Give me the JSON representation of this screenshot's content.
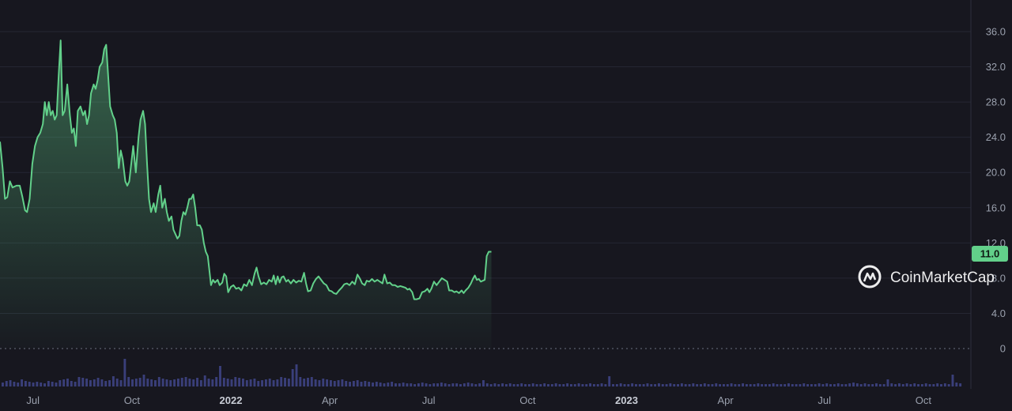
{
  "watermark": "CoinMarketCap",
  "colors": {
    "background": "#17171f",
    "line": "#62d08a",
    "grid": "#252733",
    "volume": "#3a3f7a",
    "label_bg": "#62d08a",
    "text": "#9aa0ad"
  },
  "chart_data": {
    "type": "area",
    "y_ticks": [
      "36.0",
      "32.0",
      "28.0",
      "24.0",
      "20.0",
      "16.0",
      "12.0",
      "8.0",
      "4.0",
      "0"
    ],
    "y_tick_values": [
      36,
      32,
      28,
      24,
      20,
      16,
      12,
      8,
      4,
      0
    ],
    "ylim": [
      0,
      37.5
    ],
    "x_ticks": [
      {
        "label": "Jul",
        "t": 5.5,
        "year": false
      },
      {
        "label": "Oct",
        "t": 8.5,
        "year": false
      },
      {
        "label": "2022",
        "t": 11.5,
        "year": true
      },
      {
        "label": "Apr",
        "t": 14.5,
        "year": false
      },
      {
        "label": "Jul",
        "t": 17.5,
        "year": false
      },
      {
        "label": "Oct",
        "t": 20.5,
        "year": false
      },
      {
        "label": "2023",
        "t": 23.5,
        "year": true
      },
      {
        "label": "Apr",
        "t": 26.5,
        "year": false
      },
      {
        "label": "Jul",
        "t": 29.5,
        "year": false
      },
      {
        "label": "Oct",
        "t": 32.5,
        "year": false
      }
    ],
    "xlim": [
      4.5,
      33.75
    ],
    "last_value_label": "11.0",
    "series": [
      {
        "values": [
          [
            4.5,
            23.5
          ],
          [
            4.58,
            20.5
          ],
          [
            4.65,
            17.0
          ],
          [
            4.72,
            17.2
          ],
          [
            4.8,
            19.0
          ],
          [
            4.88,
            18.3
          ],
          [
            5.0,
            18.5
          ],
          [
            5.1,
            18.5
          ],
          [
            5.18,
            17.2
          ],
          [
            5.26,
            15.7
          ],
          [
            5.32,
            15.5
          ],
          [
            5.4,
            17.0
          ],
          [
            5.48,
            21.0
          ],
          [
            5.56,
            23.0
          ],
          [
            5.64,
            24.0
          ],
          [
            5.72,
            24.5
          ],
          [
            5.8,
            25.5
          ],
          [
            5.86,
            28.0
          ],
          [
            5.92,
            26.5
          ],
          [
            5.98,
            28.0
          ],
          [
            6.04,
            26.5
          ],
          [
            6.1,
            27.0
          ],
          [
            6.16,
            26.0
          ],
          [
            6.22,
            26.5
          ],
          [
            6.28,
            31.0
          ],
          [
            6.34,
            35.0
          ],
          [
            6.4,
            26.5
          ],
          [
            6.46,
            27.0
          ],
          [
            6.54,
            30.0
          ],
          [
            6.62,
            26.5
          ],
          [
            6.68,
            24.5
          ],
          [
            6.74,
            25.0
          ],
          [
            6.8,
            23.0
          ],
          [
            6.86,
            27.0
          ],
          [
            6.94,
            27.5
          ],
          [
            7.02,
            26.5
          ],
          [
            7.08,
            27.0
          ],
          [
            7.14,
            25.5
          ],
          [
            7.2,
            26.5
          ],
          [
            7.26,
            29.0
          ],
          [
            7.34,
            30.0
          ],
          [
            7.4,
            29.5
          ],
          [
            7.46,
            30.5
          ],
          [
            7.52,
            32.0
          ],
          [
            7.6,
            32.5
          ],
          [
            7.66,
            34.0
          ],
          [
            7.72,
            34.5
          ],
          [
            7.78,
            31.0
          ],
          [
            7.84,
            27.5
          ],
          [
            7.92,
            26.5
          ],
          [
            7.98,
            26.0
          ],
          [
            8.04,
            24.5
          ],
          [
            8.1,
            20.5
          ],
          [
            8.16,
            22.5
          ],
          [
            8.22,
            21.5
          ],
          [
            8.3,
            19.0
          ],
          [
            8.36,
            18.5
          ],
          [
            8.42,
            19.0
          ],
          [
            8.48,
            21.0
          ],
          [
            8.54,
            23.0
          ],
          [
            8.62,
            20.0
          ],
          [
            8.7,
            24.0
          ],
          [
            8.76,
            26.0
          ],
          [
            8.84,
            27.0
          ],
          [
            8.9,
            25.5
          ],
          [
            8.96,
            21.0
          ],
          [
            9.02,
            17.0
          ],
          [
            9.08,
            15.5
          ],
          [
            9.16,
            16.5
          ],
          [
            9.22,
            15.5
          ],
          [
            9.3,
            17.5
          ],
          [
            9.36,
            18.5
          ],
          [
            9.42,
            16.0
          ],
          [
            9.5,
            17.0
          ],
          [
            9.56,
            15.5
          ],
          [
            9.62,
            14.5
          ],
          [
            9.7,
            15.0
          ],
          [
            9.76,
            13.5
          ],
          [
            9.82,
            13.0
          ],
          [
            9.88,
            12.5
          ],
          [
            9.94,
            12.8
          ],
          [
            10.0,
            14.5
          ],
          [
            10.06,
            15.5
          ],
          [
            10.12,
            15.2
          ],
          [
            10.18,
            16.0
          ],
          [
            10.24,
            17.0
          ],
          [
            10.3,
            17.0
          ],
          [
            10.36,
            17.5
          ],
          [
            10.42,
            16.0
          ],
          [
            10.48,
            14.0
          ],
          [
            10.56,
            14.0
          ],
          [
            10.62,
            13.5
          ],
          [
            10.68,
            12.0
          ],
          [
            10.74,
            11.0
          ],
          [
            10.8,
            10.5
          ],
          [
            10.86,
            8.5
          ],
          [
            10.9,
            7.2
          ],
          [
            10.96,
            7.8
          ],
          [
            11.02,
            7.5
          ],
          [
            11.1,
            7.8
          ],
          [
            11.16,
            7.2
          ],
          [
            11.24,
            7.5
          ],
          [
            11.3,
            8.5
          ],
          [
            11.36,
            8.2
          ],
          [
            11.42,
            6.4
          ],
          [
            11.5,
            7.0
          ],
          [
            11.58,
            7.2
          ],
          [
            11.66,
            6.8
          ],
          [
            11.74,
            6.9
          ],
          [
            11.82,
            6.6
          ],
          [
            11.9,
            7.3
          ],
          [
            11.98,
            7.1
          ],
          [
            12.06,
            7.8
          ],
          [
            12.14,
            7.2
          ],
          [
            12.22,
            8.5
          ],
          [
            12.28,
            9.2
          ],
          [
            12.34,
            8.2
          ],
          [
            12.42,
            7.3
          ],
          [
            12.5,
            7.5
          ],
          [
            12.58,
            7.3
          ],
          [
            12.66,
            7.8
          ],
          [
            12.74,
            7.6
          ],
          [
            12.8,
            8.3
          ],
          [
            12.86,
            7.3
          ],
          [
            12.92,
            8.2
          ],
          [
            12.98,
            7.5
          ],
          [
            13.04,
            8.1
          ],
          [
            13.1,
            8.2
          ],
          [
            13.18,
            7.6
          ],
          [
            13.24,
            7.8
          ],
          [
            13.32,
            7.4
          ],
          [
            13.4,
            7.8
          ],
          [
            13.48,
            7.5
          ],
          [
            13.56,
            7.7
          ],
          [
            13.64,
            7.6
          ],
          [
            13.72,
            8.6
          ],
          [
            13.78,
            7.4
          ],
          [
            13.84,
            6.5
          ],
          [
            13.92,
            6.6
          ],
          [
            14.0,
            7.4
          ],
          [
            14.08,
            7.9
          ],
          [
            14.16,
            8.2
          ],
          [
            14.24,
            7.8
          ],
          [
            14.32,
            7.4
          ],
          [
            14.4,
            7.2
          ],
          [
            14.48,
            6.6
          ],
          [
            14.56,
            6.5
          ],
          [
            14.62,
            6.3
          ],
          [
            14.7,
            6.2
          ],
          [
            14.78,
            6.6
          ],
          [
            14.86,
            6.9
          ],
          [
            14.94,
            7.3
          ],
          [
            15.02,
            7.4
          ],
          [
            15.1,
            7.2
          ],
          [
            15.18,
            7.6
          ],
          [
            15.26,
            7.3
          ],
          [
            15.34,
            8.4
          ],
          [
            15.42,
            7.9
          ],
          [
            15.48,
            7.4
          ],
          [
            15.56,
            7.2
          ],
          [
            15.62,
            7.7
          ],
          [
            15.7,
            7.6
          ],
          [
            15.78,
            7.9
          ],
          [
            15.86,
            7.6
          ],
          [
            15.94,
            7.8
          ],
          [
            16.02,
            7.6
          ],
          [
            16.1,
            7.4
          ],
          [
            16.16,
            8.4
          ],
          [
            16.24,
            7.4
          ],
          [
            16.32,
            7.5
          ],
          [
            16.4,
            7.2
          ],
          [
            16.48,
            7.2
          ],
          [
            16.56,
            7.0
          ],
          [
            16.64,
            7.1
          ],
          [
            16.72,
            7.0
          ],
          [
            16.8,
            6.9
          ],
          [
            16.86,
            6.7
          ],
          [
            16.92,
            6.8
          ],
          [
            17.0,
            6.4
          ],
          [
            17.06,
            5.6
          ],
          [
            17.14,
            5.6
          ],
          [
            17.22,
            5.7
          ],
          [
            17.3,
            6.4
          ],
          [
            17.38,
            6.5
          ],
          [
            17.46,
            6.8
          ],
          [
            17.52,
            6.4
          ],
          [
            17.58,
            6.8
          ],
          [
            17.66,
            7.6
          ],
          [
            17.74,
            7.2
          ],
          [
            17.82,
            7.6
          ],
          [
            17.9,
            8.0
          ],
          [
            17.98,
            7.8
          ],
          [
            18.06,
            7.6
          ],
          [
            18.12,
            6.6
          ],
          [
            18.2,
            6.6
          ],
          [
            18.28,
            6.4
          ],
          [
            18.34,
            6.5
          ],
          [
            18.42,
            6.3
          ],
          [
            18.5,
            6.6
          ],
          [
            18.56,
            6.3
          ],
          [
            18.62,
            6.6
          ],
          [
            18.7,
            6.9
          ],
          [
            18.78,
            7.4
          ],
          [
            18.84,
            7.9
          ],
          [
            18.9,
            8.3
          ],
          [
            18.96,
            7.8
          ],
          [
            19.02,
            7.9
          ],
          [
            19.08,
            7.6
          ],
          [
            19.14,
            7.7
          ],
          [
            19.2,
            7.8
          ],
          [
            19.26,
            10.5
          ],
          [
            19.32,
            11.0
          ],
          [
            19.4,
            11.0
          ]
        ]
      }
    ]
  },
  "volume_data": {
    "values": [
      0.05,
      0.07,
      0.08,
      0.06,
      0.05,
      0.09,
      0.07,
      0.06,
      0.05,
      0.06,
      0.05,
      0.04,
      0.07,
      0.06,
      0.05,
      0.08,
      0.09,
      0.1,
      0.07,
      0.06,
      0.12,
      0.11,
      0.1,
      0.08,
      0.09,
      0.11,
      0.09,
      0.07,
      0.08,
      0.13,
      0.1,
      0.08,
      0.35,
      0.12,
      0.09,
      0.1,
      0.11,
      0.15,
      0.1,
      0.09,
      0.08,
      0.12,
      0.1,
      0.09,
      0.08,
      0.09,
      0.1,
      0.11,
      0.12,
      0.1,
      0.09,
      0.11,
      0.08,
      0.14,
      0.1,
      0.09,
      0.12,
      0.26,
      0.11,
      0.1,
      0.09,
      0.12,
      0.11,
      0.1,
      0.08,
      0.09,
      0.1,
      0.07,
      0.08,
      0.09,
      0.1,
      0.08,
      0.09,
      0.12,
      0.11,
      0.1,
      0.22,
      0.28,
      0.12,
      0.1,
      0.11,
      0.12,
      0.09,
      0.08,
      0.1,
      0.09,
      0.08,
      0.07,
      0.08,
      0.09,
      0.07,
      0.06,
      0.07,
      0.08,
      0.06,
      0.07,
      0.06,
      0.05,
      0.06,
      0.05,
      0.04,
      0.05,
      0.06,
      0.04,
      0.04,
      0.05,
      0.04,
      0.04,
      0.03,
      0.04,
      0.05,
      0.04,
      0.03,
      0.04,
      0.04,
      0.05,
      0.04,
      0.03,
      0.04,
      0.04,
      0.03,
      0.04,
      0.05,
      0.04,
      0.03,
      0.04,
      0.08,
      0.04,
      0.03,
      0.04,
      0.03,
      0.04,
      0.03,
      0.04,
      0.03,
      0.03,
      0.04,
      0.03,
      0.03,
      0.04,
      0.03,
      0.03,
      0.04,
      0.03,
      0.03,
      0.04,
      0.03,
      0.03,
      0.04,
      0.03,
      0.03,
      0.04,
      0.03,
      0.03,
      0.04,
      0.03,
      0.03,
      0.04,
      0.03,
      0.13,
      0.03,
      0.03,
      0.04,
      0.03,
      0.03,
      0.04,
      0.03,
      0.03,
      0.03,
      0.04,
      0.03,
      0.03,
      0.04,
      0.03,
      0.03,
      0.04,
      0.03,
      0.03,
      0.04,
      0.03,
      0.03,
      0.04,
      0.03,
      0.03,
      0.04,
      0.03,
      0.03,
      0.04,
      0.03,
      0.03,
      0.03,
      0.04,
      0.03,
      0.03,
      0.04,
      0.03,
      0.03,
      0.03,
      0.04,
      0.03,
      0.03,
      0.03,
      0.04,
      0.03,
      0.03,
      0.03,
      0.04,
      0.03,
      0.03,
      0.03,
      0.04,
      0.03,
      0.03,
      0.03,
      0.04,
      0.03,
      0.04,
      0.03,
      0.03,
      0.04,
      0.03,
      0.03,
      0.04,
      0.05,
      0.04,
      0.03,
      0.04,
      0.03,
      0.03,
      0.04,
      0.03,
      0.03,
      0.09,
      0.04,
      0.03,
      0.04,
      0.03,
      0.04,
      0.03,
      0.04,
      0.03,
      0.03,
      0.04,
      0.03,
      0.03,
      0.04,
      0.03,
      0.04,
      0.03,
      0.15,
      0.05,
      0.04
    ]
  }
}
